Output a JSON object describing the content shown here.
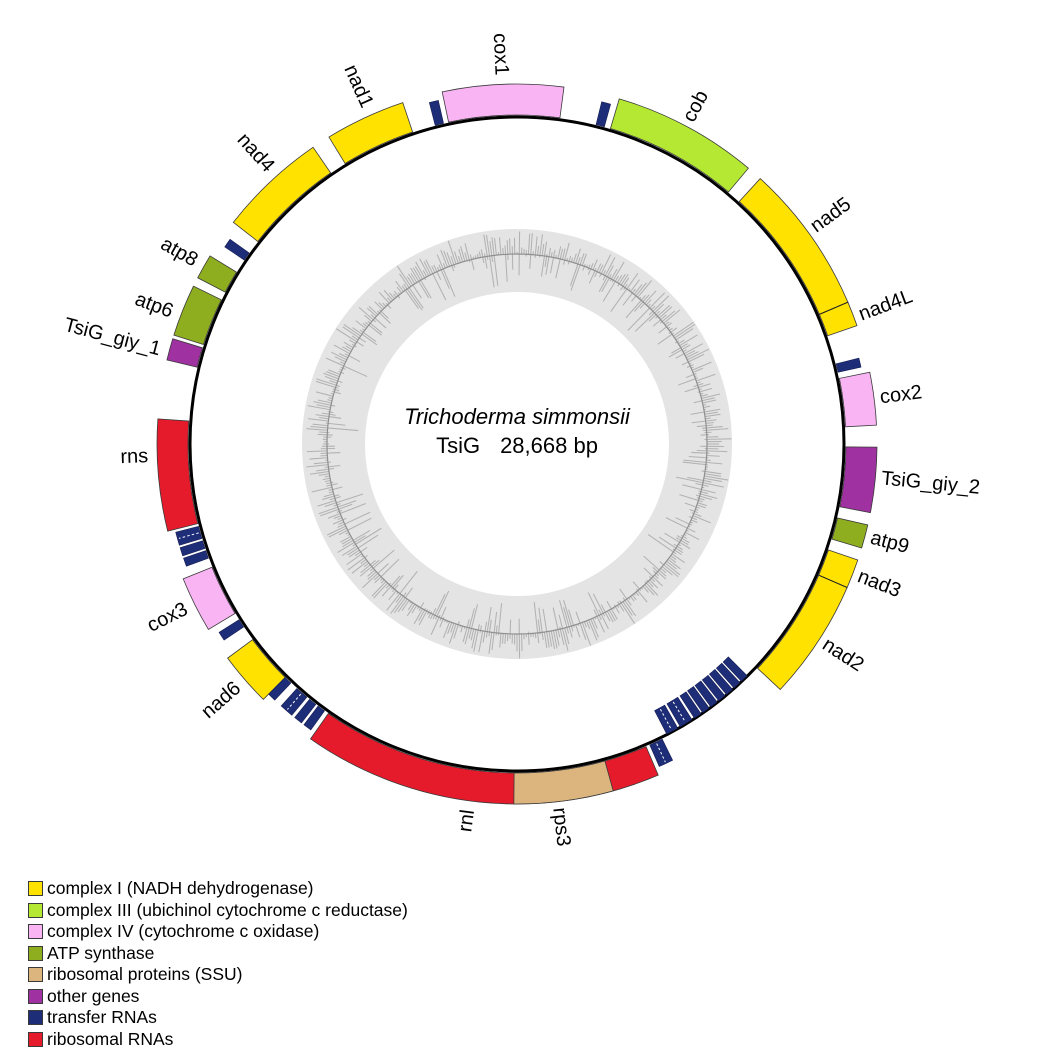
{
  "figure": {
    "center_title_species": "Trichoderma simmonsii",
    "center_genome_id": "TsiG",
    "center_genome_size": "28,668 bp"
  },
  "colors": {
    "complex1": "#ffe200",
    "complex3": "#b5e833",
    "complex4": "#f9b4f4",
    "atp": "#8fae1f",
    "rps": "#dcb57e",
    "other": "#a031a0",
    "trna": "#1e2d78",
    "rrna": "#e51a2b",
    "ring_bg": "#e4e4e4",
    "ring_bar": "#b2b2b2",
    "ring_line": "#8f8f8f",
    "outline": "#3a3a3a",
    "circle": "#000000"
  },
  "legend": {
    "items": [
      {
        "label": "complex I (NADH dehydrogenase)",
        "type": "complex1"
      },
      {
        "label": "complex III (ubichinol cytochrome c reductase)",
        "type": "complex3"
      },
      {
        "label": "complex IV (cytochrome c oxidase)",
        "type": "complex4"
      },
      {
        "label": "ATP synthase",
        "type": "atp"
      },
      {
        "label": "ribosomal proteins (SSU)",
        "type": "rps"
      },
      {
        "label": "other genes",
        "type": "other"
      },
      {
        "label": "transfer RNAs",
        "type": "trna"
      },
      {
        "label": "ribosomal RNAs",
        "type": "rrna"
      }
    ]
  },
  "map": {
    "genes": [
      {
        "name": "cox1",
        "type": "complex4",
        "start": 348.0,
        "end": 367.5,
        "label_angle": -2.5
      },
      {
        "name": "cob",
        "type": "complex3",
        "start": 16.5,
        "end": 40.0,
        "label_angle": 28.0
      },
      {
        "name": "nad5",
        "type": "complex1",
        "start": 42.5,
        "end": 66.8,
        "label_angle": 54.0
      },
      {
        "name": "nad4L",
        "type": "complex1",
        "start": 66.8,
        "end": 70.8,
        "label_angle": 69.5,
        "divider_start": true
      },
      {
        "name": "cox2",
        "type": "complex4",
        "start": 78.5,
        "end": 87.0,
        "label_angle": 82.8
      },
      {
        "name": "TsiG_giy_2",
        "type": "other",
        "start": 90.5,
        "end": 101.0,
        "label_angle": 95.5
      },
      {
        "name": "atp9",
        "type": "atp",
        "start": 103.0,
        "end": 106.8,
        "label_angle": 104.9
      },
      {
        "name": "nad3",
        "type": "complex1",
        "start": 108.8,
        "end": 113.5,
        "label_angle": 111.2
      },
      {
        "name": "nad2",
        "type": "complex1",
        "start": 113.5,
        "end": 133.0,
        "label_angle": 123.0,
        "divider_start": true
      },
      {
        "name": "rnl",
        "type": "rrna",
        "start": 156.9,
        "end": 215.0,
        "label_angle": 187.5
      },
      {
        "name": "rps3",
        "type": "rps",
        "start": 164.5,
        "end": 180.5,
        "label_angle": 173.5
      },
      {
        "name": "nad6",
        "type": "complex1",
        "start": 224.8,
        "end": 233.5,
        "label_angle": 229.0
      },
      {
        "name": "cox3",
        "type": "complex4",
        "start": 239.0,
        "end": 248.0,
        "label_angle": 243.5
      },
      {
        "name": "rns",
        "type": "rrna",
        "start": 256.0,
        "end": 274.0,
        "label_angle": 268.0
      },
      {
        "name": "TsiG_giy_1",
        "type": "other",
        "start": 283.5,
        "end": 287.0,
        "label_angle": 284.7
      },
      {
        "name": "atp6",
        "type": "atp",
        "start": 287.6,
        "end": 296.0,
        "label_angle": 290.8
      },
      {
        "name": "atp8",
        "type": "atp",
        "start": 297.5,
        "end": 301.5,
        "label_angle": 299.5
      },
      {
        "name": "nad4",
        "type": "complex1",
        "start": 308.0,
        "end": 325.5,
        "label_angle": 318.0
      },
      {
        "name": "nad1",
        "type": "complex1",
        "start": 328.5,
        "end": 341.5,
        "label_angle": 336.0
      }
    ],
    "trnas_outside": [
      {
        "start": 13.9,
        "end": 15.4
      },
      {
        "start": 75.9,
        "end": 77.4
      },
      {
        "start": 153.8,
        "end": 156.2,
        "dashed": true
      },
      {
        "start": 215.8,
        "end": 217.2
      },
      {
        "start": 217.7,
        "end": 219.1
      },
      {
        "start": 219.7,
        "end": 222.0,
        "dashed": true
      },
      {
        "start": 223.4,
        "end": 224.8
      },
      {
        "start": 236.2,
        "end": 237.7
      },
      {
        "start": 249.7,
        "end": 251.1
      },
      {
        "start": 251.5,
        "end": 252.9
      },
      {
        "start": 253.3,
        "end": 255.5,
        "dashed": true
      },
      {
        "start": 304.0,
        "end": 305.5
      },
      {
        "start": 345.6,
        "end": 347.1
      }
    ],
    "trnas_inside": [
      {
        "start": 135.2,
        "end": 136.6
      },
      {
        "start": 136.95,
        "end": 138.35
      },
      {
        "start": 138.7,
        "end": 140.1
      },
      {
        "start": 140.45,
        "end": 141.85
      },
      {
        "start": 142.2,
        "end": 143.6
      },
      {
        "start": 143.95,
        "end": 145.35
      },
      {
        "start": 145.7,
        "end": 147.1
      },
      {
        "start": 147.6,
        "end": 150.0,
        "dashed": true
      },
      {
        "start": 150.5,
        "end": 152.7,
        "dashed": true
      }
    ]
  }
}
